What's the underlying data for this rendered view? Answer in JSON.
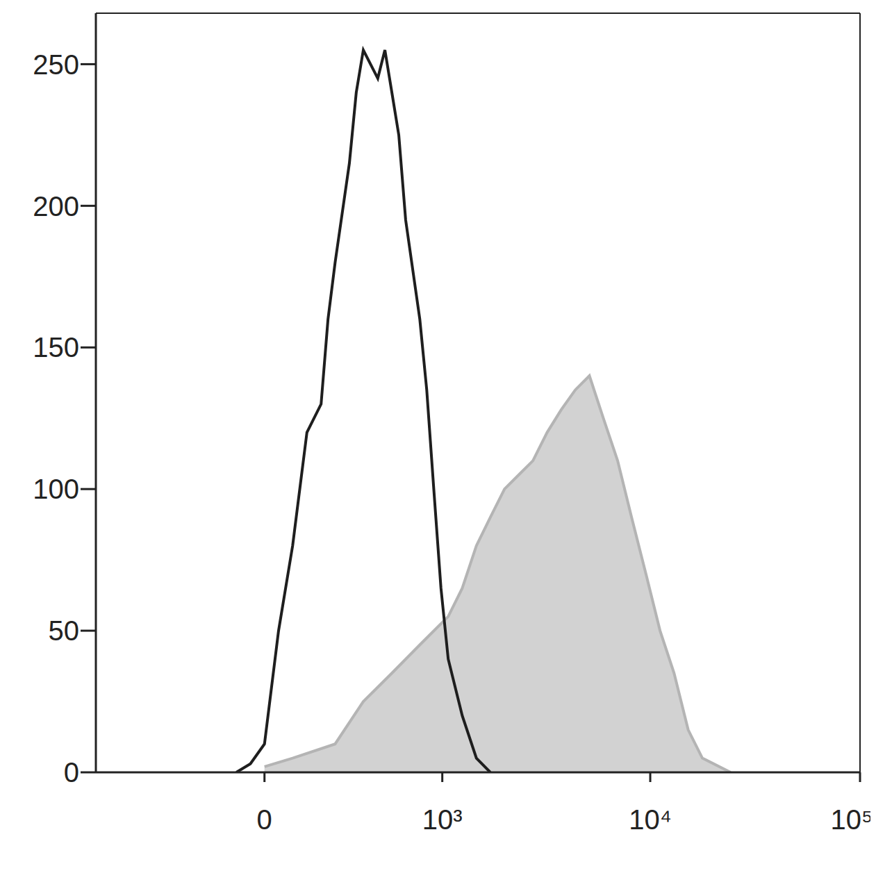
{
  "chart_data": {
    "type": "line",
    "xlim": [
      -900,
      100000
    ],
    "xticks": [
      {
        "value": 0,
        "label": "0"
      },
      {
        "value": 1000,
        "label": "10³"
      },
      {
        "value": 10000,
        "label": "10⁴"
      },
      {
        "value": 100000,
        "label": "10⁵"
      }
    ],
    "ylim": [
      0,
      268
    ],
    "yticks": [
      0,
      50,
      100,
      150,
      200,
      250
    ],
    "grid": false,
    "series": [
      {
        "type": "area",
        "color": "#b4b4b4",
        "x": [
          0,
          91,
          248,
          380,
          551,
          771,
          1070,
          1254,
          1470,
          1717,
          2010,
          2352,
          2752,
          3219,
          3761,
          4388,
          5127,
          5974,
          6989,
          8149,
          9541,
          11136,
          12992,
          15167,
          17719,
          24157
        ],
        "values": [
          2,
          5,
          10,
          25,
          35,
          45,
          55,
          65,
          80,
          90,
          100,
          105,
          110,
          120,
          128,
          135,
          140,
          125,
          110,
          90,
          70,
          50,
          35,
          15,
          5,
          0
        ]
      },
      {
        "type": "line",
        "color": "#1e1e1e",
        "x": [
          -91,
          -45,
          0,
          45,
          91,
          140,
          192,
          219,
          248,
          311,
          344,
          380,
          461,
          505,
          551,
          600,
          652,
          771,
          836,
          907,
          985,
          1070,
          1254,
          1470,
          1717
        ],
        "values": [
          0,
          3,
          10,
          50,
          80,
          120,
          130,
          160,
          180,
          215,
          240,
          255,
          245,
          255,
          240,
          225,
          195,
          160,
          135,
          100,
          65,
          40,
          20,
          5,
          0
        ]
      }
    ]
  }
}
